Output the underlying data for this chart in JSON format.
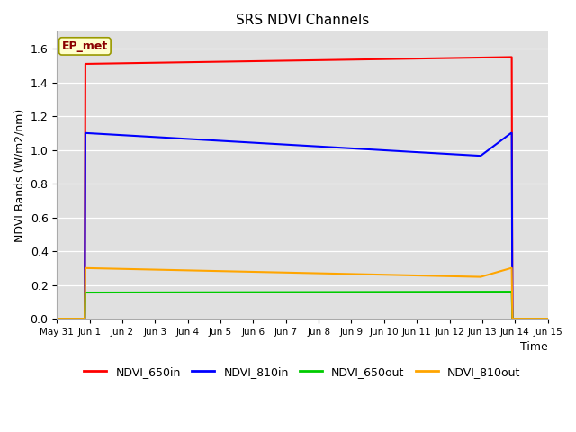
{
  "title": "SRS NDVI Channels",
  "xlabel": "Time",
  "ylabel": "NDVI Bands (W/m2/nm)",
  "ylim": [
    0.0,
    1.7
  ],
  "yticks": [
    0.0,
    0.2,
    0.4,
    0.6,
    0.8,
    1.0,
    1.2,
    1.4,
    1.6
  ],
  "annotation_text": "EP_met",
  "plot_bg_color": "#e0e0e0",
  "fig_bg_color": "#ffffff",
  "lines": {
    "NDVI_650in": {
      "color": "#ff0000",
      "x": [
        0,
        0.85,
        0.87,
        13.88,
        13.9,
        13.92,
        15.0
      ],
      "y": [
        0.0,
        0.0,
        1.51,
        1.55,
        1.55,
        0.0,
        0.0
      ]
    },
    "NDVI_810in": {
      "color": "#0000ff",
      "x": [
        0,
        0.85,
        0.87,
        12.95,
        13.88,
        13.9,
        13.92,
        15.0
      ],
      "y": [
        0.0,
        0.0,
        1.1,
        0.965,
        1.1,
        1.1,
        0.0,
        0.0
      ]
    },
    "NDVI_650out": {
      "color": "#00cc00",
      "x": [
        0,
        0.85,
        0.87,
        13.88,
        13.9,
        13.92,
        15.0
      ],
      "y": [
        0.0,
        0.0,
        0.155,
        0.16,
        0.16,
        0.0,
        0.0
      ]
    },
    "NDVI_810out": {
      "color": "#ffa500",
      "x": [
        0,
        0.85,
        0.87,
        12.95,
        13.88,
        13.9,
        13.92,
        15.0
      ],
      "y": [
        0.0,
        0.0,
        0.3,
        0.248,
        0.3,
        0.3,
        0.0,
        0.0
      ]
    }
  },
  "xtick_positions": [
    0,
    1,
    2,
    3,
    4,
    5,
    6,
    7,
    8,
    9,
    10,
    11,
    12,
    13,
    14,
    15
  ],
  "xtick_labels": [
    "May 31",
    "Jun 1",
    "Jun 2",
    "Jun 3",
    "Jun 4",
    "Jun 5",
    "Jun 6",
    "Jun 7",
    "Jun 8",
    "Jun 9",
    "Jun 10",
    "Jun 11",
    "Jun 12",
    "Jun 13",
    "Jun 14",
    "Jun 15"
  ],
  "legend_labels": [
    "NDVI_650in",
    "NDVI_810in",
    "NDVI_650out",
    "NDVI_810out"
  ],
  "legend_colors": [
    "#ff0000",
    "#0000ff",
    "#00cc00",
    "#ffa500"
  ],
  "figsize": [
    6.4,
    4.8
  ],
  "dpi": 100
}
